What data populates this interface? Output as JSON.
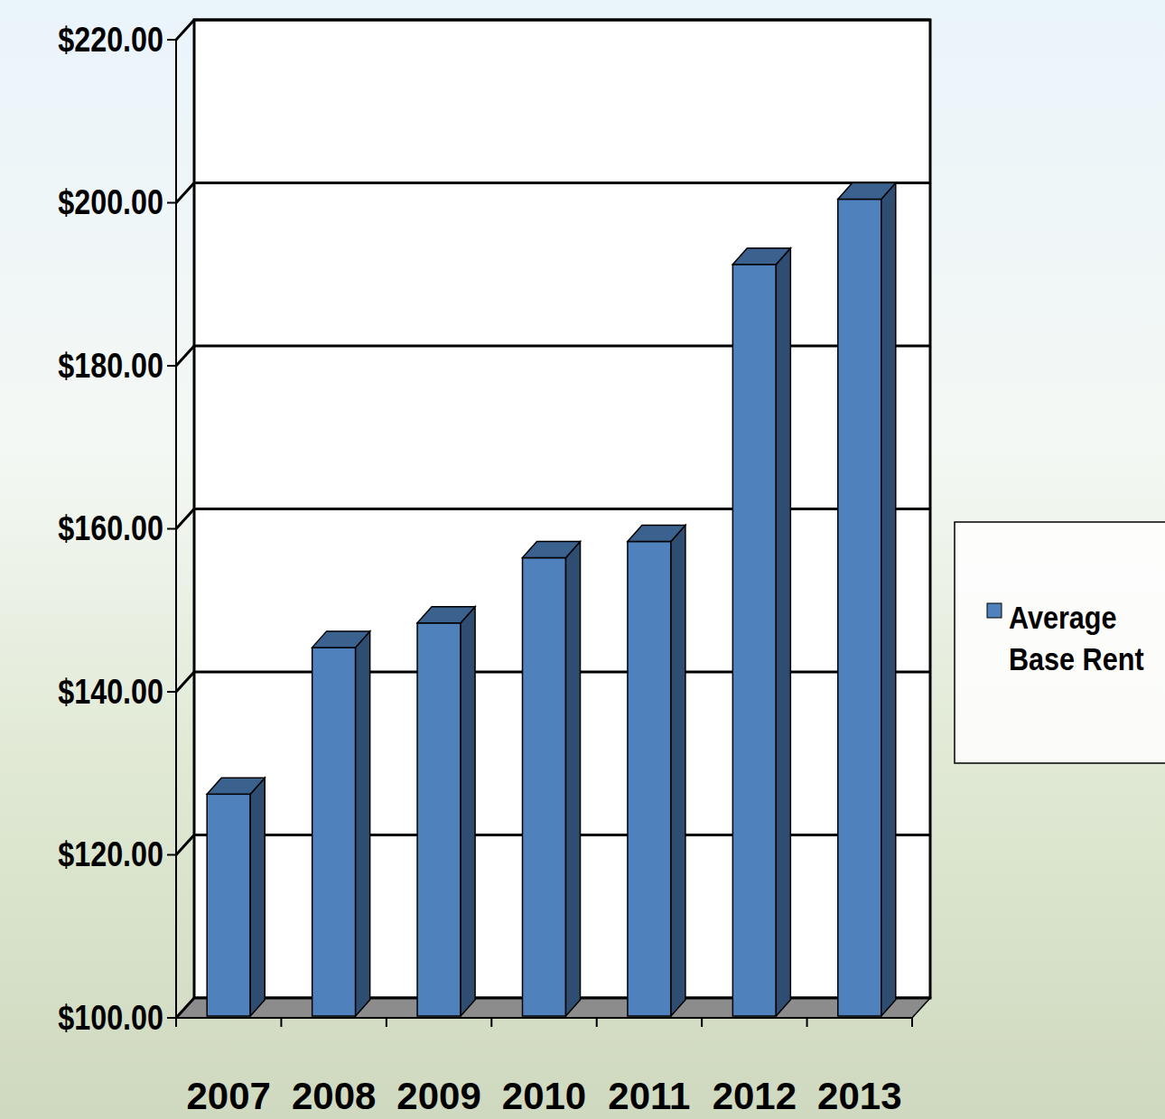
{
  "chart_data": {
    "type": "bar",
    "categories": [
      "2007",
      "2008",
      "2009",
      "2010",
      "2011",
      "2012",
      "2013"
    ],
    "series": [
      {
        "name": "Average Base Rent",
        "color": "#4f81bd",
        "values": [
          127,
          145,
          148,
          156,
          158,
          192,
          200
        ]
      }
    ],
    "ylim": [
      100,
      220
    ],
    "yticks": [
      {
        "value": 100,
        "label": "$100.00"
      },
      {
        "value": 120,
        "label": "$120.00"
      },
      {
        "value": 140,
        "label": "$140.00"
      },
      {
        "value": 160,
        "label": "$160.00"
      },
      {
        "value": 180,
        "label": "$180.00"
      },
      {
        "value": 200,
        "label": "$200.00"
      },
      {
        "value": 220,
        "label": "$220.00"
      }
    ],
    "grid": true,
    "legend": "right"
  }
}
